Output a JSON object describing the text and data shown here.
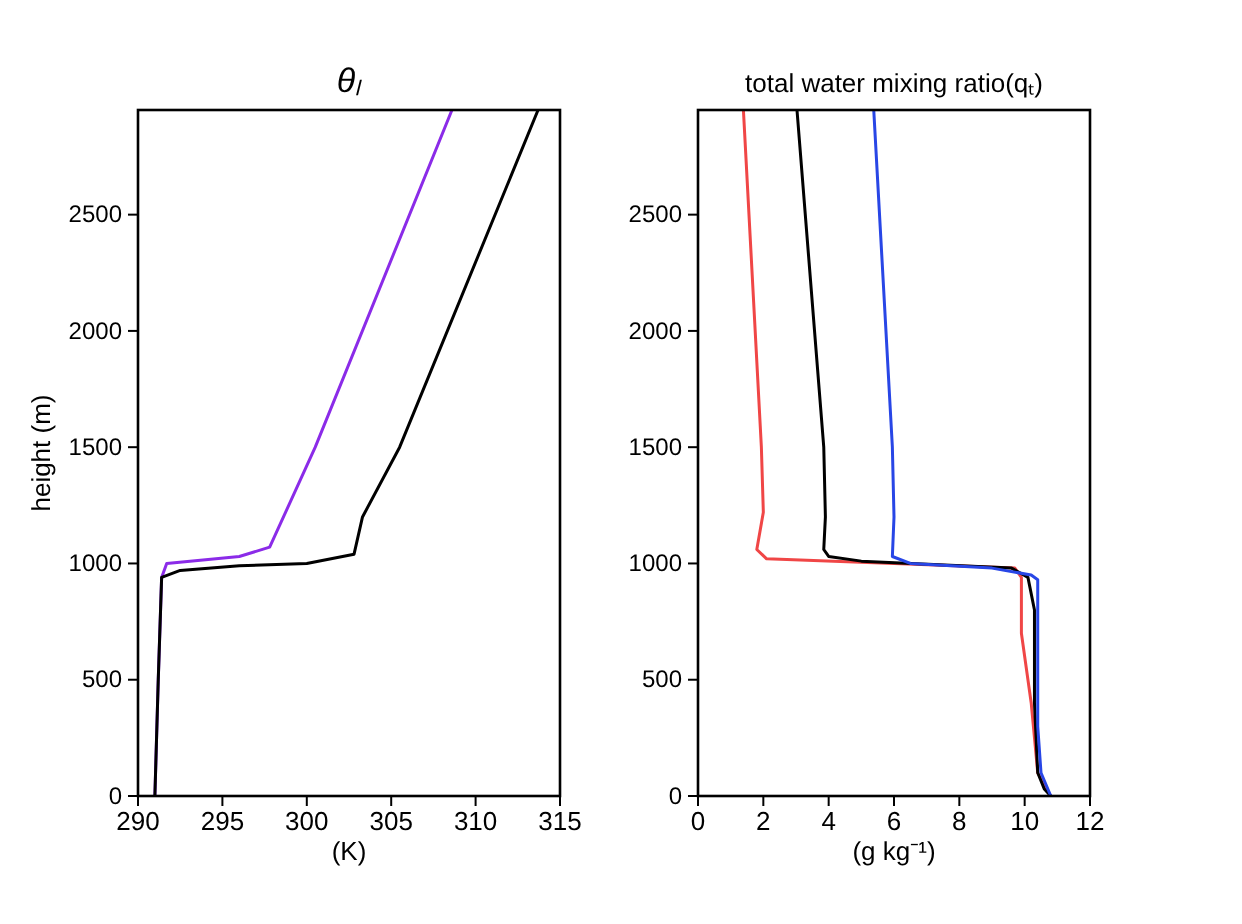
{
  "chart_data": [
    {
      "type": "line",
      "title": "θₗ",
      "xlabel": "(K)",
      "ylabel": "height (m)",
      "xlim": [
        290,
        315
      ],
      "xticks": [
        290,
        295,
        300,
        305,
        310,
        315
      ],
      "ylim": [
        0,
        2950
      ],
      "yticks": [
        0,
        500,
        1000,
        1500,
        2000,
        2500
      ],
      "line_style": "solid",
      "marker": "none",
      "series": [
        {
          "color": "#8b2be8",
          "x": [
            291.0,
            291.2,
            291.4,
            291.7,
            296,
            297.8,
            300.5,
            308.6
          ],
          "values": [
            0,
            500,
            940,
            1000,
            1030,
            1070,
            1500,
            2950
          ]
        },
        {
          "color": "#000000",
          "x": [
            291.0,
            291.2,
            291.4,
            292.5,
            296,
            300,
            302.8,
            303.3,
            305.5,
            313.7
          ],
          "values": [
            0,
            500,
            940,
            970,
            990,
            1000,
            1040,
            1200,
            1500,
            2950
          ]
        }
      ]
    },
    {
      "type": "line",
      "title": "total water mixing ratio(qₜ)",
      "xlabel": "(g kg⁻¹)",
      "xlim": [
        0,
        12
      ],
      "xticks": [
        0,
        2,
        4,
        6,
        8,
        10,
        12
      ],
      "ylim": [
        0,
        2950
      ],
      "yticks": [
        0,
        500,
        1000,
        1500,
        2000,
        2500
      ],
      "line_style": "solid",
      "marker": "none",
      "series": [
        {
          "color": "#f04646",
          "x": [
            10.8,
            10.7,
            10.4,
            10.2,
            9.9,
            9.9,
            9.7,
            2.1,
            1.8,
            2.0,
            1.94,
            1.39
          ],
          "values": [
            0,
            20,
            100,
            400,
            700,
            940,
            980,
            1020,
            1060,
            1220,
            1500,
            2950
          ]
        },
        {
          "color": "#000000",
          "x": [
            10.8,
            10.6,
            10.4,
            10.3,
            10.3,
            10.1,
            9.6,
            5,
            4.0,
            3.85,
            3.9,
            3.85,
            3.03
          ],
          "values": [
            0,
            30,
            100,
            400,
            800,
            940,
            980,
            1010,
            1030,
            1060,
            1200,
            1500,
            2950
          ]
        },
        {
          "color": "#2846e6",
          "x": [
            10.8,
            10.5,
            10.4,
            10.4,
            10.4,
            10.2,
            9,
            6.5,
            5.95,
            6.0,
            5.95,
            5.38
          ],
          "values": [
            0,
            100,
            300,
            600,
            930,
            950,
            980,
            1000,
            1030,
            1200,
            1500,
            2950
          ]
        }
      ]
    }
  ]
}
